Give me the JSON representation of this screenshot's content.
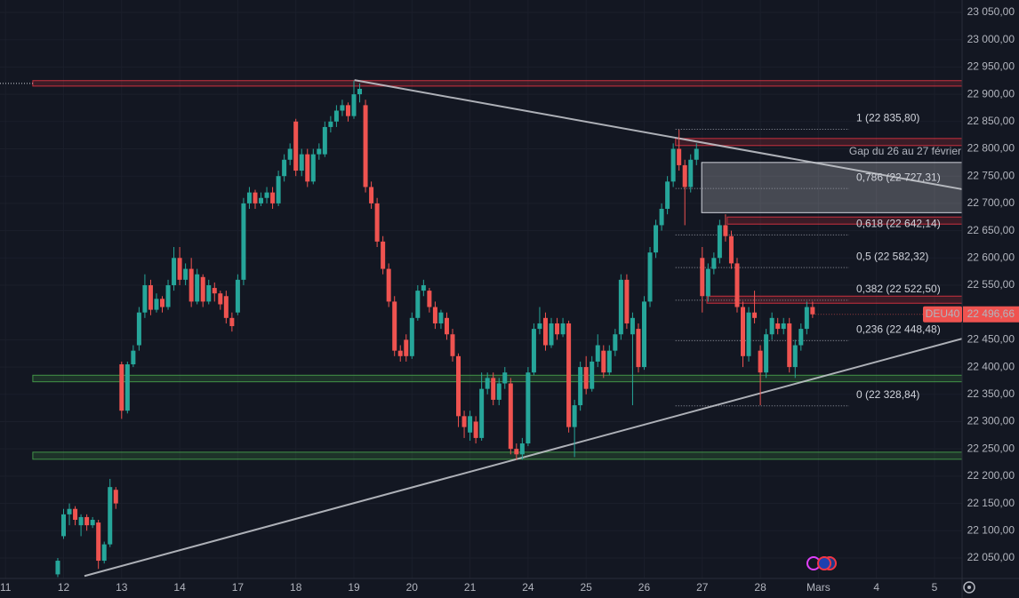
{
  "chart_data": {
    "type": "candlestick",
    "symbol": "DEU40",
    "colors": {
      "up": "#26a69a",
      "down": "#ef5350",
      "background": "#131722",
      "grid": "#1b1f2b"
    },
    "xlim": [
      -9.95,
      155.75
    ],
    "ylim": [
      22012.5,
      23072.8
    ],
    "xticks": [
      {
        "value": -9,
        "label": "11"
      },
      {
        "value": 1,
        "label": "12"
      },
      {
        "value": 11,
        "label": "13"
      },
      {
        "value": 21,
        "label": "14"
      },
      {
        "value": 31,
        "label": "17"
      },
      {
        "value": 41,
        "label": "18"
      },
      {
        "value": 51,
        "label": "19"
      },
      {
        "value": 61,
        "label": "20"
      },
      {
        "value": 71,
        "label": "21"
      },
      {
        "value": 81,
        "label": "24"
      },
      {
        "value": 91,
        "label": "25"
      },
      {
        "value": 101,
        "label": "26"
      },
      {
        "value": 111,
        "label": "27"
      },
      {
        "value": 121,
        "label": "28"
      },
      {
        "value": 131,
        "label": "Mars"
      },
      {
        "value": 141,
        "label": "4"
      },
      {
        "value": 151,
        "label": "5"
      }
    ],
    "yticks": [
      {
        "value": 23050,
        "label": "23 050,00"
      },
      {
        "value": 23000,
        "label": "23 000,00"
      },
      {
        "value": 22950,
        "label": "22 950,00"
      },
      {
        "value": 22900,
        "label": "22 900,00"
      },
      {
        "value": 22850,
        "label": "22 850,00"
      },
      {
        "value": 22800,
        "label": "22 800,00"
      },
      {
        "value": 22750,
        "label": "22 750,00"
      },
      {
        "value": 22700,
        "label": "22 700,00"
      },
      {
        "value": 22650,
        "label": "22 650,00"
      },
      {
        "value": 22600,
        "label": "22 600,00"
      },
      {
        "value": 22550,
        "label": "22 550,00"
      },
      {
        "value": 22450,
        "label": "22 450,00"
      },
      {
        "value": 22400,
        "label": "22 400,00"
      },
      {
        "value": 22350,
        "label": "22 350,00"
      },
      {
        "value": 22300,
        "label": "22 300,00"
      },
      {
        "value": 22250,
        "label": "22 250,00"
      },
      {
        "value": 22200,
        "label": "22 200,00"
      },
      {
        "value": 22150,
        "label": "22 150,00"
      },
      {
        "value": 22100,
        "label": "22 100,00"
      },
      {
        "value": 22050,
        "label": "22 050,00"
      }
    ],
    "last_price": {
      "value": 22496.66,
      "label": "22 496,66"
    },
    "open": [
      22020,
      22090,
      22130,
      22140,
      22110,
      22125,
      22110,
      22115,
      22045,
      22075,
      22175,
      22405,
      22320,
      22405,
      22440,
      22500,
      22550,
      22505,
      22525,
      22510,
      22550,
      22600,
      22560,
      22580,
      22520,
      22565,
      22520,
      22545,
      22535,
      22530,
      22490,
      22500,
      22560,
      22700,
      22720,
      22700,
      22710,
      22720,
      22700,
      22750,
      22780,
      22850,
      22760,
      22790,
      22740,
      22790,
      22790,
      22840,
      22850,
      22870,
      22880,
      22860,
      22900,
      22880,
      22730,
      22700,
      22630,
      22580,
      22520,
      22430,
      22450,
      22420,
      22490,
      22540,
      22540,
      22510,
      22480,
      22490,
      22460,
      22420,
      22310,
      22280,
      22300,
      22270,
      22360,
      22380,
      22340,
      22370,
      22370,
      22250,
      22240,
      22260,
      22390,
      22470,
      22490,
      22440,
      22480,
      22460,
      22480,
      22290,
      22330,
      22400,
      22360,
      22410,
      22430,
      22390,
      22430,
      22460,
      22560,
      22460,
      22470,
      22400,
      22520,
      22610,
      22660,
      22690,
      22740,
      22800,
      22770,
      22730,
      22780,
      22600,
      22530,
      22580,
      22600,
      22660,
      22640,
      22590,
      22510,
      22420,
      22500,
      22430,
      22390,
      22460,
      22480,
      22470,
      22480,
      22400,
      22440,
      22470,
      22510
    ],
    "high": [
      22050,
      22140,
      22150,
      22145,
      22130,
      22130,
      22125,
      22120,
      22080,
      22195,
      22180,
      22410,
      22410,
      22440,
      22510,
      22570,
      22560,
      22535,
      22530,
      22560,
      22620,
      22620,
      22590,
      22600,
      22580,
      22570,
      22560,
      22555,
      22540,
      22540,
      22500,
      22570,
      22710,
      22730,
      22725,
      22720,
      22730,
      22730,
      22760,
      22790,
      22810,
      22855,
      22800,
      22800,
      22800,
      22810,
      22850,
      22860,
      22880,
      22890,
      22885,
      22925,
      22920,
      22890,
      22740,
      22710,
      22640,
      22590,
      22530,
      22440,
      22460,
      22500,
      22550,
      22560,
      22545,
      22520,
      22505,
      22500,
      22470,
      22425,
      22320,
      22320,
      22310,
      22390,
      22390,
      22390,
      22380,
      22400,
      22380,
      22260,
      22270,
      22400,
      22480,
      22510,
      22500,
      22490,
      22490,
      22490,
      22485,
      22340,
      22410,
      22420,
      22420,
      22460,
      22440,
      22440,
      22470,
      22570,
      22570,
      22500,
      22480,
      22530,
      22620,
      22670,
      22700,
      22750,
      22810,
      22835,
      22780,
      22790,
      22810,
      22620,
      22590,
      22610,
      22670,
      22680,
      22650,
      22600,
      22520,
      22510,
      22540,
      22440,
      22470,
      22500,
      22490,
      22490,
      22490,
      22450,
      22480,
      22520,
      22520
    ],
    "low": [
      22015,
      22085,
      22110,
      22110,
      22090,
      22100,
      22105,
      22030,
      22040,
      22070,
      22140,
      22305,
      22315,
      22400,
      22430,
      22490,
      22495,
      22500,
      22500,
      22505,
      22540,
      22550,
      22550,
      22510,
      22515,
      22510,
      22515,
      22520,
      22505,
      22480,
      22465,
      22495,
      22550,
      22690,
      22690,
      22695,
      22700,
      22690,
      22695,
      22740,
      22770,
      22750,
      22750,
      22730,
      22735,
      22780,
      22785,
      22830,
      22840,
      22860,
      22850,
      22855,
      22885,
      22720,
      22690,
      22620,
      22570,
      22510,
      22420,
      22410,
      22410,
      22415,
      22485,
      22530,
      22500,
      22470,
      22470,
      22450,
      22410,
      22290,
      22270,
      22265,
      22260,
      22265,
      22350,
      22330,
      22330,
      22360,
      22240,
      22230,
      22230,
      22255,
      22385,
      22460,
      22430,
      22435,
      22450,
      22455,
      22280,
      22235,
      22320,
      22350,
      22355,
      22400,
      22380,
      22385,
      22420,
      22450,
      22470,
      22330,
      22390,
      22395,
      22510,
      22600,
      22650,
      22680,
      22730,
      22760,
      22660,
      22720,
      22770,
      22500,
      22520,
      22570,
      22590,
      22630,
      22580,
      22500,
      22400,
      22410,
      22480,
      22330,
      22380,
      22450,
      22460,
      22460,
      22390,
      22380,
      22430,
      22460,
      22490
    ],
    "close": [
      22045,
      22130,
      22140,
      22120,
      22125,
      22110,
      22120,
      22045,
      22075,
      22180,
      22150,
      22320,
      22405,
      22430,
      22500,
      22550,
      22505,
      22525,
      22510,
      22550,
      22600,
      22560,
      22580,
      22520,
      22570,
      22520,
      22550,
      22535,
      22515,
      22490,
      22475,
      22560,
      22700,
      22720,
      22700,
      22710,
      22720,
      22700,
      22750,
      22780,
      22800,
      22760,
      22790,
      22740,
      22790,
      22800,
      22840,
      22850,
      22870,
      22880,
      22860,
      22900,
      22910,
      22730,
      22700,
      22630,
      22580,
      22520,
      22430,
      22420,
      22420,
      22490,
      22540,
      22550,
      22510,
      22480,
      22500,
      22460,
      22420,
      22310,
      22290,
      22310,
      22270,
      22360,
      22380,
      22340,
      22370,
      22390,
      22250,
      22240,
      22260,
      22390,
      22470,
      22480,
      22440,
      22480,
      22460,
      22480,
      22290,
      22330,
      22400,
      22360,
      22410,
      22440,
      22390,
      22430,
      22460,
      22560,
      22480,
      22490,
      22400,
      22520,
      22610,
      22660,
      22690,
      22740,
      22800,
      22770,
      22730,
      22780,
      22800,
      22530,
      22580,
      22600,
      22660,
      22640,
      22590,
      22510,
      22420,
      22500,
      22490,
      22390,
      22460,
      22490,
      22470,
      22480,
      22400,
      22440,
      22470,
      22510,
      22496.66
    ],
    "zones": [
      {
        "y": [
          22915,
          22925
        ],
        "x0": -4.3,
        "color": "#f23645",
        "extend": true
      },
      {
        "y": [
          22373,
          22385
        ],
        "x0": -4.3,
        "color": "#4caf50",
        "extend": false
      },
      {
        "y": [
          22231,
          22244
        ],
        "x0": -4.3,
        "color": "#4caf50",
        "extend": false
      },
      {
        "y": [
          22806,
          22819
        ],
        "x0": 106.4,
        "color": "#f23645",
        "extend": false
      },
      {
        "y": [
          22662,
          22675
        ],
        "x0": 115.3,
        "color": "#f23645",
        "extend": false
      },
      {
        "y": [
          22517,
          22530
        ],
        "x0": 111.8,
        "color": "#f23645",
        "extend": false
      }
    ],
    "gap": {
      "label": "Gap du 26 au 27 février",
      "y": [
        22683,
        22775
      ],
      "x0": 110.9
    },
    "trendlines": [
      {
        "x": [
          51.1,
          155.75
        ],
        "y": [
          22926,
          22726
        ]
      },
      {
        "x": [
          4.6,
          155.75
        ],
        "y": [
          22017,
          22452
        ]
      }
    ],
    "fib_x": [
      106.4,
      136.3
    ],
    "fib_levels": [
      {
        "value": 22835.8,
        "label": "1 (22 835,80)"
      },
      {
        "value": 22727.31,
        "label": "0,786 (22 727,31)"
      },
      {
        "value": 22642.14,
        "label": "0,618 (22 642,14)"
      },
      {
        "value": 22582.32,
        "label": "0,5 (22 582,32)"
      },
      {
        "value": 22522.5,
        "label": "0,382 (22 522,50)"
      },
      {
        "value": 22448.48,
        "label": "0,236 (22 448,48)"
      },
      {
        "value": 22328.84,
        "label": "0 (22 328,84)"
      }
    ]
  }
}
